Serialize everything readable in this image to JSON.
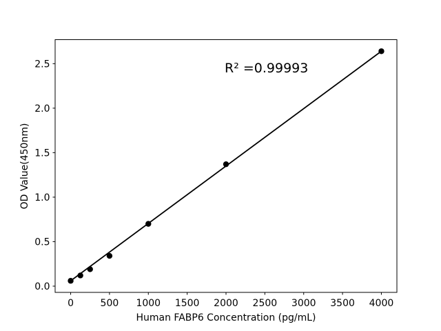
{
  "figure": {
    "background": "#ffffff",
    "text_color": "#000000"
  },
  "chart_data": {
    "type": "scatter",
    "xlabel": "Human FABP6 Concentration (pg/mL)",
    "ylabel": "OD Value(450nm)",
    "annotation": "R² =0.99993",
    "x": [
      0,
      125,
      250,
      500,
      1000,
      2000,
      4000
    ],
    "y": [
      0.06,
      0.12,
      0.19,
      0.34,
      0.7,
      1.37,
      2.64
    ],
    "fit_line": {
      "x": [
        0,
        4000
      ],
      "y": [
        0.06,
        2.64
      ]
    },
    "xlim": [
      -200,
      4200
    ],
    "ylim": [
      -0.07,
      2.77
    ],
    "xticks": [
      0,
      500,
      1000,
      1500,
      2000,
      2500,
      3000,
      3500,
      4000
    ],
    "xtick_labels": [
      "0",
      "500",
      "1000",
      "1500",
      "2000",
      "2500",
      "3000",
      "3500",
      "4000"
    ],
    "yticks": [
      0.0,
      0.5,
      1.0,
      1.5,
      2.0,
      2.5
    ],
    "ytick_labels": [
      "0.0",
      "0.5",
      "1.0",
      "1.5",
      "2.0",
      "2.5"
    ],
    "grid": false,
    "legend_position": "none",
    "marker_color": "#000000",
    "line_color": "#000000",
    "spine_color": "#000000"
  }
}
